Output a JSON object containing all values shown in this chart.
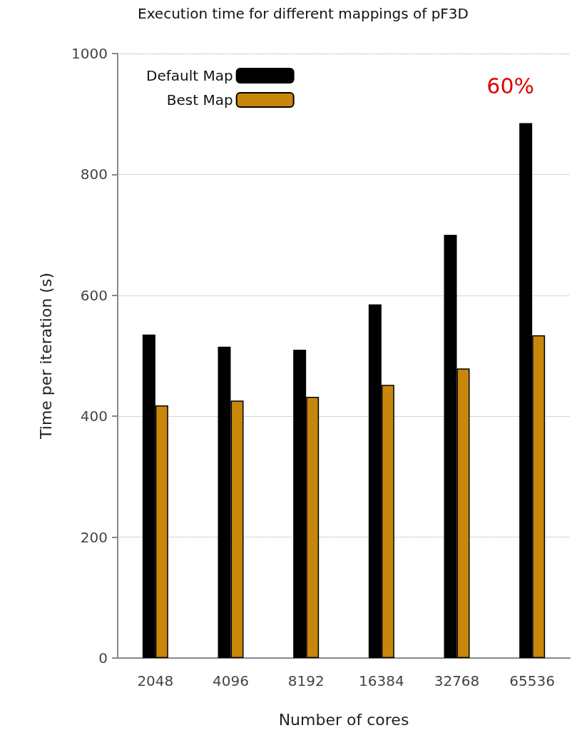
{
  "chart_data": {
    "type": "bar",
    "title": "Execution time for different mappings of pF3D",
    "xlabel": "Number of cores",
    "ylabel": "Time per iteration (s)",
    "categories": [
      "2048",
      "4096",
      "8192",
      "16384",
      "32768",
      "65536"
    ],
    "series": [
      {
        "name": "Default Map",
        "color": "#000000",
        "values": [
          535,
          515,
          510,
          585,
          700,
          885
        ]
      },
      {
        "name": "Best Map",
        "color": "#c8860a",
        "values": [
          418,
          426,
          432,
          452,
          479,
          534
        ]
      }
    ],
    "ylim": [
      0,
      1000
    ],
    "yticks": [
      0,
      200,
      400,
      600,
      800,
      1000
    ],
    "grid": "y",
    "legend": "top left",
    "annotations": [
      "60%"
    ]
  }
}
